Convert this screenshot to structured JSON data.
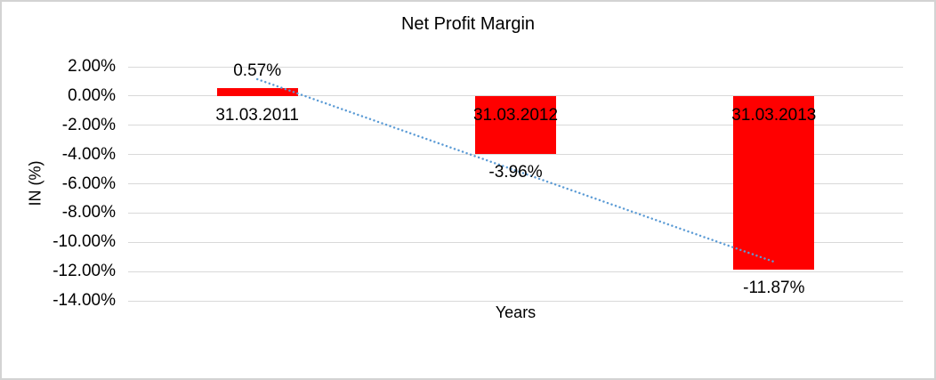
{
  "chart_data": {
    "type": "bar",
    "title": "Net Profit Margin",
    "xlabel": "Years",
    "ylabel": "IN (%)",
    "categories": [
      "31.03.2011",
      "31.03.2012",
      "31.03.2013"
    ],
    "series": [
      {
        "name": "Net Profit Margin",
        "values": [
          0.57,
          -3.96,
          -11.87
        ]
      }
    ],
    "data_labels": [
      "0.57%",
      "-3.96%",
      "-11.87%"
    ],
    "y_ticks": [
      {
        "value": 2,
        "label": "2.00%"
      },
      {
        "value": 0,
        "label": "0.00%"
      },
      {
        "value": -2,
        "label": "-2.00%"
      },
      {
        "value": -4,
        "label": "-4.00%"
      },
      {
        "value": -6,
        "label": "-6.00%"
      },
      {
        "value": -8,
        "label": "-8.00%"
      },
      {
        "value": -10,
        "label": "-10.00%"
      },
      {
        "value": -12,
        "label": "-12.00%"
      },
      {
        "value": -14,
        "label": "-14.00%"
      }
    ],
    "ylim": [
      -14,
      2
    ],
    "grid": true,
    "legend": "none",
    "colors": {
      "bar": "#ff0000",
      "trendline": "#5b9bd5",
      "gridline": "#d9d9d9",
      "text": "#000000",
      "frame_border": "#d3d3d3",
      "background": "#ffffff"
    },
    "trendline": {
      "type": "linear",
      "style": "dotted",
      "start": {
        "category_index": 0,
        "value": 1.15
      },
      "end": {
        "category_index": 2,
        "value": -11.33
      }
    }
  }
}
